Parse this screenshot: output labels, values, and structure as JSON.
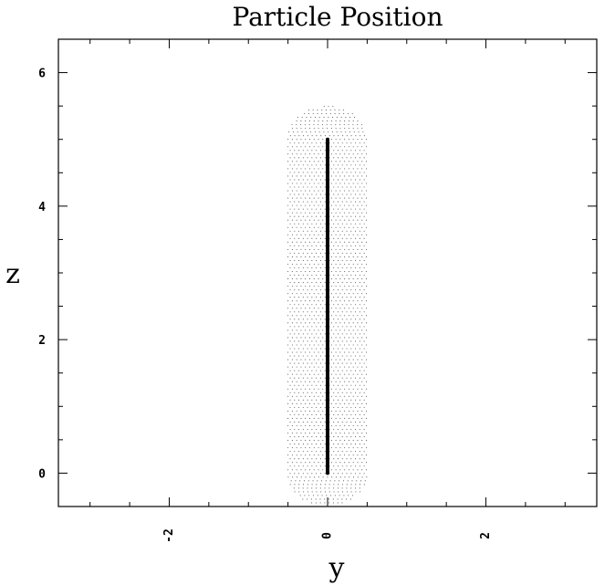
{
  "chart_data": {
    "type": "scatter",
    "title": "Particle Position",
    "xlabel": "y",
    "ylabel": "z",
    "xlim": [
      -3.4,
      3.4
    ],
    "ylim": [
      -0.5,
      6.5
    ],
    "xticks": [
      -2,
      0,
      2
    ],
    "xtick_labels": [
      "-2",
      "0",
      "2"
    ],
    "yticks": [
      0,
      2,
      4,
      6
    ],
    "ytick_labels": [
      "0",
      "2",
      "4",
      "6"
    ],
    "grid": false,
    "legend": "none",
    "series": [
      {
        "kind": "particle-cloud",
        "shape": "capsule",
        "center_y": 0,
        "radius": 0.5,
        "z_range": [
          0,
          5
        ],
        "marker": "dot",
        "color": "#555555"
      },
      {
        "kind": "axis-line",
        "x": [
          0,
          0
        ],
        "y": [
          0,
          5
        ],
        "color": "#000000"
      }
    ]
  }
}
